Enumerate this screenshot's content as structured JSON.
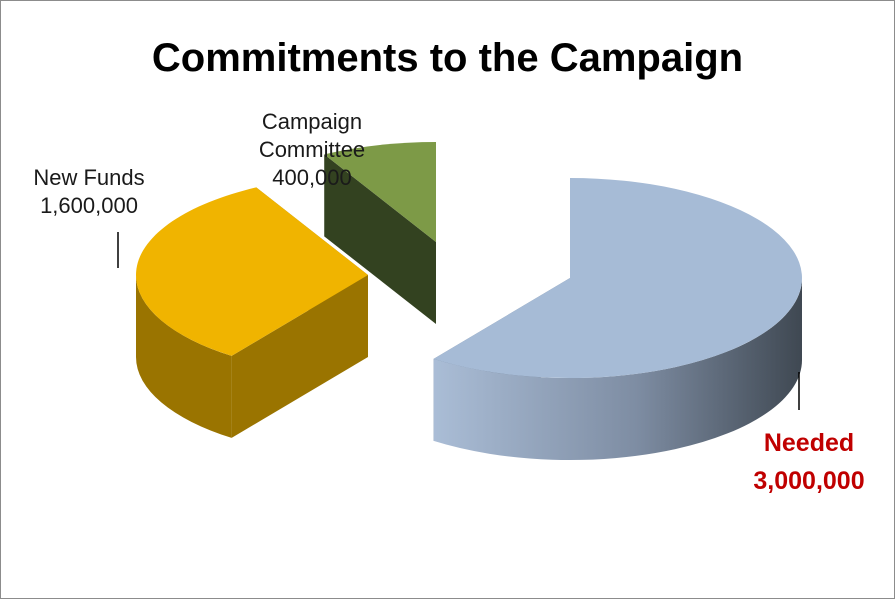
{
  "chart_data": {
    "type": "pie",
    "title": "Commitments  to the Campaign",
    "categories": [
      "Needed",
      "New Funds",
      "Campaign Committee"
    ],
    "values": [
      3000000,
      1600000,
      400000
    ],
    "value_labels": [
      "3,000,000",
      "1,600,000",
      "400,000"
    ],
    "label_lines": [
      [
        "Needed"
      ],
      [
        "New Funds"
      ],
      [
        "Campaign",
        "Committee"
      ]
    ],
    "colors": [
      "#a6bbd6",
      "#f0b400",
      "#7d9a47"
    ],
    "label_colors": [
      "#c00000",
      "#1a1a1a",
      "#1a1a1a"
    ],
    "style": "3d-exploded",
    "legend": "none"
  }
}
